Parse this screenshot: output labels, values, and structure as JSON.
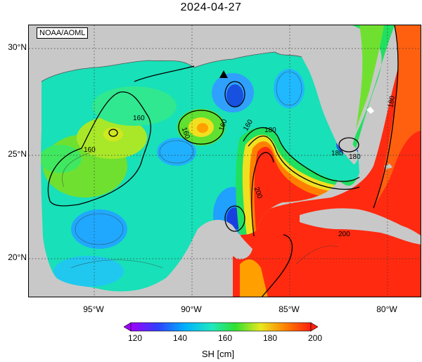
{
  "title": "2024-04-27",
  "credit": "NOAA/AOML",
  "lat_labels": [
    "30°N",
    "25°N",
    "20°N"
  ],
  "lon_labels": [
    "95°W",
    "90°W",
    "85°W",
    "80°W"
  ],
  "contour_labels": [
    "160",
    "160",
    "160",
    "160",
    "160",
    "180",
    "180",
    "180",
    "180",
    "200",
    "200"
  ],
  "colorbar": {
    "ticks": [
      "120",
      "140",
      "160",
      "180",
      "200"
    ],
    "label": "SH [cm]",
    "colors": [
      "#a000ff",
      "#3040ff",
      "#00b0ff",
      "#20e8c0",
      "#30e030",
      "#e8e820",
      "#ff8000",
      "#ff2010"
    ]
  },
  "colors": {
    "land": "#c8c8c8",
    "high_value": "#ff2a10",
    "low_value": "#1040e0"
  },
  "marker": "triangle"
}
